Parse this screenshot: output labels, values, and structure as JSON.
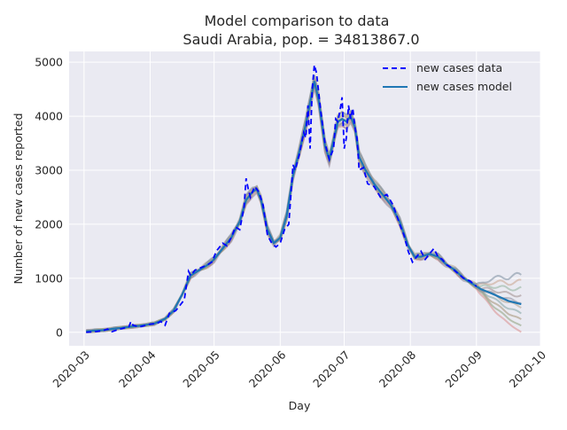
{
  "chart_data": {
    "type": "line",
    "title": "Model comparison to data",
    "subtitle": "Saudi Arabia, pop. = 34813867.0",
    "xlabel": "Day",
    "ylabel": "Number of new cases reported",
    "xlim": [
      "2020-02-23",
      "2020-10-01"
    ],
    "ylim": [
      -250,
      5200
    ],
    "grid": true,
    "legend_position": "top-right",
    "x_ticks": [
      "2020-03",
      "2020-04",
      "2020-05",
      "2020-06",
      "2020-07",
      "2020-08",
      "2020-09",
      "2020-10"
    ],
    "y_ticks": [
      0,
      1000,
      2000,
      3000,
      4000,
      5000
    ],
    "series": [
      {
        "name": "new cases data",
        "style": "dashed",
        "color": "#0000ff",
        "points": [
          [
            "2020-03-02",
            0
          ],
          [
            "2020-03-06",
            10
          ],
          [
            "2020-03-10",
            30
          ],
          [
            "2020-03-12",
            60
          ],
          [
            "2020-03-14",
            10
          ],
          [
            "2020-03-17",
            50
          ],
          [
            "2020-03-20",
            80
          ],
          [
            "2020-03-22",
            100
          ],
          [
            "2020-03-23",
            200
          ],
          [
            "2020-03-24",
            130
          ],
          [
            "2020-03-27",
            100
          ],
          [
            "2020-03-30",
            130
          ],
          [
            "2020-04-01",
            150
          ],
          [
            "2020-04-04",
            160
          ],
          [
            "2020-04-06",
            200
          ],
          [
            "2020-04-08",
            130
          ],
          [
            "2020-04-10",
            350
          ],
          [
            "2020-04-13",
            400
          ],
          [
            "2020-04-15",
            500
          ],
          [
            "2020-04-17",
            600
          ],
          [
            "2020-04-19",
            1130
          ],
          [
            "2020-04-20",
            1050
          ],
          [
            "2020-04-22",
            1150
          ],
          [
            "2020-04-25",
            1200
          ],
          [
            "2020-04-28",
            1250
          ],
          [
            "2020-04-30",
            1300
          ],
          [
            "2020-05-02",
            1500
          ],
          [
            "2020-05-05",
            1650
          ],
          [
            "2020-05-07",
            1600
          ],
          [
            "2020-05-09",
            1750
          ],
          [
            "2020-05-11",
            1950
          ],
          [
            "2020-05-13",
            1900
          ],
          [
            "2020-05-15",
            2300
          ],
          [
            "2020-05-16",
            2850
          ],
          [
            "2020-05-17",
            2650
          ],
          [
            "2020-05-18",
            2500
          ],
          [
            "2020-05-20",
            2700
          ],
          [
            "2020-05-22",
            2600
          ],
          [
            "2020-05-24",
            2350
          ],
          [
            "2020-05-26",
            1800
          ],
          [
            "2020-05-28",
            1650
          ],
          [
            "2020-05-30",
            1580
          ],
          [
            "2020-06-01",
            1650
          ],
          [
            "2020-06-03",
            1900
          ],
          [
            "2020-06-05",
            2000
          ],
          [
            "2020-06-07",
            3100
          ],
          [
            "2020-06-08",
            3000
          ],
          [
            "2020-06-10",
            3300
          ],
          [
            "2020-06-12",
            3700
          ],
          [
            "2020-06-13",
            3600
          ],
          [
            "2020-06-14",
            4200
          ],
          [
            "2020-06-15",
            3400
          ],
          [
            "2020-06-16",
            4500
          ],
          [
            "2020-06-17",
            4950
          ],
          [
            "2020-06-18",
            4800
          ],
          [
            "2020-06-20",
            4100
          ],
          [
            "2020-06-22",
            3500
          ],
          [
            "2020-06-24",
            3200
          ],
          [
            "2020-06-26",
            3400
          ],
          [
            "2020-06-27",
            3950
          ],
          [
            "2020-06-28",
            3900
          ],
          [
            "2020-06-29",
            4100
          ],
          [
            "2020-06-30",
            4350
          ],
          [
            "2020-07-01",
            3400
          ],
          [
            "2020-07-02",
            3600
          ],
          [
            "2020-07-03",
            4200
          ],
          [
            "2020-07-04",
            3950
          ],
          [
            "2020-07-05",
            4150
          ],
          [
            "2020-07-06",
            3800
          ],
          [
            "2020-07-07",
            3600
          ],
          [
            "2020-07-08",
            3000
          ],
          [
            "2020-07-10",
            3050
          ],
          [
            "2020-07-12",
            2750
          ],
          [
            "2020-07-15",
            2700
          ],
          [
            "2020-07-18",
            2500
          ],
          [
            "2020-07-21",
            2550
          ],
          [
            "2020-07-24",
            2350
          ],
          [
            "2020-07-27",
            2000
          ],
          [
            "2020-07-29",
            1800
          ],
          [
            "2020-07-31",
            1500
          ],
          [
            "2020-08-02",
            1300
          ],
          [
            "2020-08-04",
            1400
          ],
          [
            "2020-08-06",
            1500
          ],
          [
            "2020-08-08",
            1350
          ],
          [
            "2020-08-10",
            1450
          ],
          [
            "2020-08-12",
            1550
          ],
          [
            "2020-08-14",
            1400
          ],
          [
            "2020-08-16",
            1350
          ],
          [
            "2020-08-18",
            1250
          ],
          [
            "2020-08-20",
            1200
          ],
          [
            "2020-08-23",
            1100
          ],
          [
            "2020-08-26",
            1000
          ],
          [
            "2020-08-29",
            950
          ],
          [
            "2020-09-01",
            850
          ]
        ]
      },
      {
        "name": "new cases model",
        "style": "solid",
        "color": "#1f77b4",
        "points": [
          [
            "2020-03-02",
            20
          ],
          [
            "2020-03-10",
            40
          ],
          [
            "2020-03-20",
            90
          ],
          [
            "2020-03-27",
            120
          ],
          [
            "2020-04-03",
            160
          ],
          [
            "2020-04-08",
            250
          ],
          [
            "2020-04-12",
            400
          ],
          [
            "2020-04-16",
            700
          ],
          [
            "2020-04-20",
            1050
          ],
          [
            "2020-04-24",
            1150
          ],
          [
            "2020-04-28",
            1250
          ],
          [
            "2020-05-01",
            1350
          ],
          [
            "2020-05-05",
            1550
          ],
          [
            "2020-05-09",
            1750
          ],
          [
            "2020-05-13",
            2050
          ],
          [
            "2020-05-16",
            2450
          ],
          [
            "2020-05-19",
            2600
          ],
          [
            "2020-05-21",
            2650
          ],
          [
            "2020-05-23",
            2450
          ],
          [
            "2020-05-26",
            1900
          ],
          [
            "2020-05-29",
            1650
          ],
          [
            "2020-06-01",
            1750
          ],
          [
            "2020-06-04",
            2150
          ],
          [
            "2020-06-07",
            2900
          ],
          [
            "2020-06-10",
            3350
          ],
          [
            "2020-06-13",
            3850
          ],
          [
            "2020-06-16",
            4450
          ],
          [
            "2020-06-17",
            4650
          ],
          [
            "2020-06-19",
            4300
          ],
          [
            "2020-06-22",
            3450
          ],
          [
            "2020-06-24",
            3200
          ],
          [
            "2020-06-26",
            3550
          ],
          [
            "2020-06-28",
            3900
          ],
          [
            "2020-06-30",
            3950
          ],
          [
            "2020-07-02",
            3900
          ],
          [
            "2020-07-04",
            4000
          ],
          [
            "2020-07-06",
            3800
          ],
          [
            "2020-07-08",
            3250
          ],
          [
            "2020-07-11",
            3000
          ],
          [
            "2020-07-15",
            2750
          ],
          [
            "2020-07-19",
            2550
          ],
          [
            "2020-07-23",
            2350
          ],
          [
            "2020-07-27",
            2050
          ],
          [
            "2020-07-31",
            1600
          ],
          [
            "2020-08-03",
            1400
          ],
          [
            "2020-08-06",
            1400
          ],
          [
            "2020-08-10",
            1450
          ],
          [
            "2020-08-14",
            1400
          ],
          [
            "2020-08-18",
            1250
          ],
          [
            "2020-08-22",
            1150
          ],
          [
            "2020-08-26",
            1000
          ],
          [
            "2020-08-30",
            900
          ],
          [
            "2020-09-03",
            800
          ],
          [
            "2020-09-08",
            720
          ],
          [
            "2020-09-12",
            650
          ],
          [
            "2020-09-16",
            580
          ],
          [
            "2020-09-22",
            520
          ]
        ]
      }
    ]
  }
}
